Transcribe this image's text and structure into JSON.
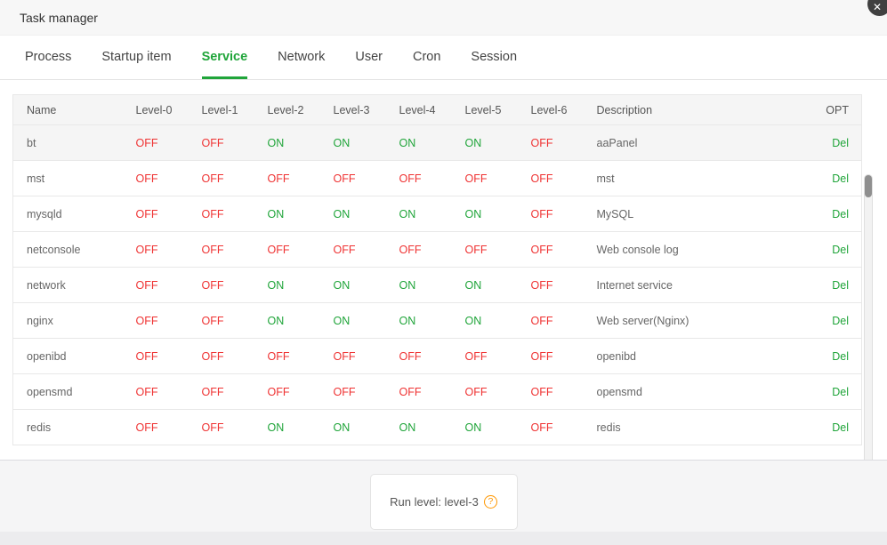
{
  "window": {
    "title": "Task manager",
    "close_glyph": "✕"
  },
  "tabs": [
    {
      "label": "Process",
      "active": false
    },
    {
      "label": "Startup item",
      "active": false
    },
    {
      "label": "Service",
      "active": true
    },
    {
      "label": "Network",
      "active": false
    },
    {
      "label": "User",
      "active": false
    },
    {
      "label": "Cron",
      "active": false
    },
    {
      "label": "Session",
      "active": false
    }
  ],
  "table": {
    "headers": [
      "Name",
      "Level-0",
      "Level-1",
      "Level-2",
      "Level-3",
      "Level-4",
      "Level-5",
      "Level-6",
      "Description",
      "OPT"
    ],
    "rows": [
      {
        "name": "bt",
        "levels": [
          "OFF",
          "OFF",
          "ON",
          "ON",
          "ON",
          "ON",
          "OFF"
        ],
        "description": "aaPanel",
        "opt": "Del",
        "highlighted": true
      },
      {
        "name": "mst",
        "levels": [
          "OFF",
          "OFF",
          "OFF",
          "OFF",
          "OFF",
          "OFF",
          "OFF"
        ],
        "description": "mst",
        "opt": "Del",
        "highlighted": false
      },
      {
        "name": "mysqld",
        "levels": [
          "OFF",
          "OFF",
          "ON",
          "ON",
          "ON",
          "ON",
          "OFF"
        ],
        "description": "MySQL",
        "opt": "Del",
        "highlighted": false
      },
      {
        "name": "netconsole",
        "levels": [
          "OFF",
          "OFF",
          "OFF",
          "OFF",
          "OFF",
          "OFF",
          "OFF"
        ],
        "description": "Web console log",
        "opt": "Del",
        "highlighted": false
      },
      {
        "name": "network",
        "levels": [
          "OFF",
          "OFF",
          "ON",
          "ON",
          "ON",
          "ON",
          "OFF"
        ],
        "description": "Internet service",
        "opt": "Del",
        "highlighted": false
      },
      {
        "name": "nginx",
        "levels": [
          "OFF",
          "OFF",
          "ON",
          "ON",
          "ON",
          "ON",
          "OFF"
        ],
        "description": "Web server(Nginx)",
        "opt": "Del",
        "highlighted": false
      },
      {
        "name": "openibd",
        "levels": [
          "OFF",
          "OFF",
          "OFF",
          "OFF",
          "OFF",
          "OFF",
          "OFF"
        ],
        "description": "openibd",
        "opt": "Del",
        "highlighted": false
      },
      {
        "name": "opensmd",
        "levels": [
          "OFF",
          "OFF",
          "OFF",
          "OFF",
          "OFF",
          "OFF",
          "OFF"
        ],
        "description": "opensmd",
        "opt": "Del",
        "highlighted": false
      },
      {
        "name": "redis",
        "levels": [
          "OFF",
          "OFF",
          "ON",
          "ON",
          "ON",
          "ON",
          "OFF"
        ],
        "description": "redis",
        "opt": "Del",
        "highlighted": false
      }
    ]
  },
  "footer": {
    "run_level_label": "Run level: level-3",
    "help_glyph": "?"
  },
  "colors": {
    "green": "#20a53a",
    "red": "#ef3333",
    "orange": "#ff9700"
  }
}
